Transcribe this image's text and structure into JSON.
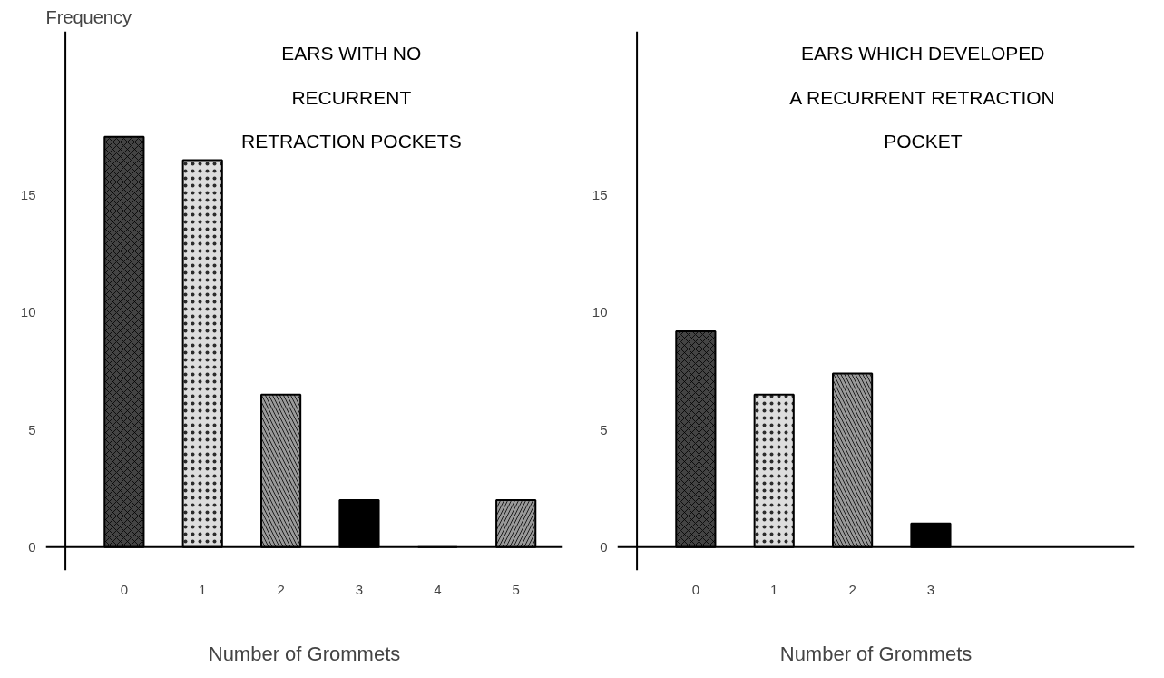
{
  "chart_data": [
    {
      "type": "bar",
      "title": "EARS WITH NO\nRECURRENT\nRETRACTION POCKETS",
      "xlabel": "Number of Grommets",
      "ylabel": "Frequency",
      "categories": [
        "0",
        "1",
        "2",
        "3",
        "4",
        "5"
      ],
      "values": [
        17.5,
        16.5,
        6.5,
        2,
        0,
        2
      ],
      "colors": [
        "#444444",
        "#dddddd",
        "#999999",
        "#000000",
        "#999999",
        "#999999"
      ],
      "ylim": [
        -1,
        22
      ],
      "yticks": [
        0,
        5,
        10,
        15
      ],
      "grid": false
    },
    {
      "type": "bar",
      "title": "EARS WHICH DEVELOPED\nA RECURRENT RETRACTION\nPOCKET",
      "xlabel": "Number of Grommets",
      "categories": [
        "0",
        "1",
        "2",
        "3",
        null,
        null
      ],
      "values": [
        9.2,
        6.5,
        7.4,
        1,
        null,
        null
      ],
      "colors": [
        "#444444",
        "#dddddd",
        "#999999",
        "#000000",
        "#999999",
        "#999999"
      ],
      "ylim": [
        -1,
        22
      ],
      "yticks": [
        0,
        5,
        10,
        15
      ],
      "grid": false
    }
  ]
}
